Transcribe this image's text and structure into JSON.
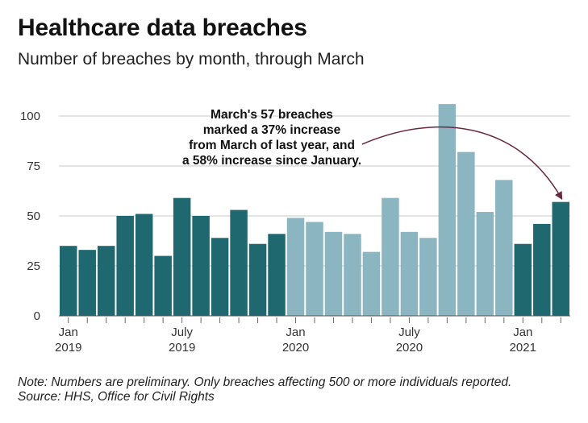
{
  "header": {
    "title": "Healthcare data breaches",
    "subtitle": "Number of breaches by month, through March"
  },
  "footer": {
    "note": "Note: Numbers are preliminary. Only breaches affecting 500 or more individuals reported.",
    "source": "Source: HHS, Office for Civil Rights"
  },
  "colors": {
    "dark": "#1f6870",
    "light": "#8ab5c1",
    "grid": "#c8c8c8",
    "arrow": "#6a2a42"
  },
  "chart_data": {
    "type": "bar",
    "title": "Healthcare data breaches",
    "subtitle": "Number of breaches by month, through March",
    "xlabel": "",
    "ylabel": "",
    "ylim": [
      0,
      110
    ],
    "yticks": [
      0,
      25,
      50,
      75,
      100
    ],
    "grid": true,
    "categories": [
      "2019-01",
      "2019-02",
      "2019-03",
      "2019-04",
      "2019-05",
      "2019-06",
      "2019-07",
      "2019-08",
      "2019-09",
      "2019-10",
      "2019-11",
      "2019-12",
      "2020-01",
      "2020-02",
      "2020-03",
      "2020-04",
      "2020-05",
      "2020-06",
      "2020-07",
      "2020-08",
      "2020-09",
      "2020-10",
      "2020-11",
      "2020-12",
      "2021-01",
      "2021-02",
      "2021-03"
    ],
    "values": [
      35,
      33,
      35,
      50,
      51,
      30,
      59,
      50,
      39,
      53,
      36,
      41,
      49,
      47,
      42,
      41,
      32,
      59,
      42,
      39,
      106,
      82,
      52,
      68,
      36,
      46,
      57
    ],
    "bar_colors": [
      "dark",
      "dark",
      "dark",
      "dark",
      "dark",
      "dark",
      "dark",
      "dark",
      "dark",
      "dark",
      "dark",
      "dark",
      "light",
      "light",
      "light",
      "light",
      "light",
      "light",
      "light",
      "light",
      "light",
      "light",
      "light",
      "light",
      "dark",
      "dark",
      "dark"
    ],
    "x_tick_labels": [
      {
        "index": 0,
        "lines": [
          "Jan",
          "2019"
        ]
      },
      {
        "index": 6,
        "lines": [
          "July",
          "2019"
        ]
      },
      {
        "index": 12,
        "lines": [
          "Jan",
          "2020"
        ]
      },
      {
        "index": 18,
        "lines": [
          "July",
          "2020"
        ]
      },
      {
        "index": 24,
        "lines": [
          "Jan",
          "2021"
        ]
      }
    ],
    "annotation": {
      "lines": [
        "March's 57 breaches",
        "marked a 37% increase",
        "from March of last year, and",
        "a 58% increase since January."
      ],
      "target_index": 26
    }
  }
}
